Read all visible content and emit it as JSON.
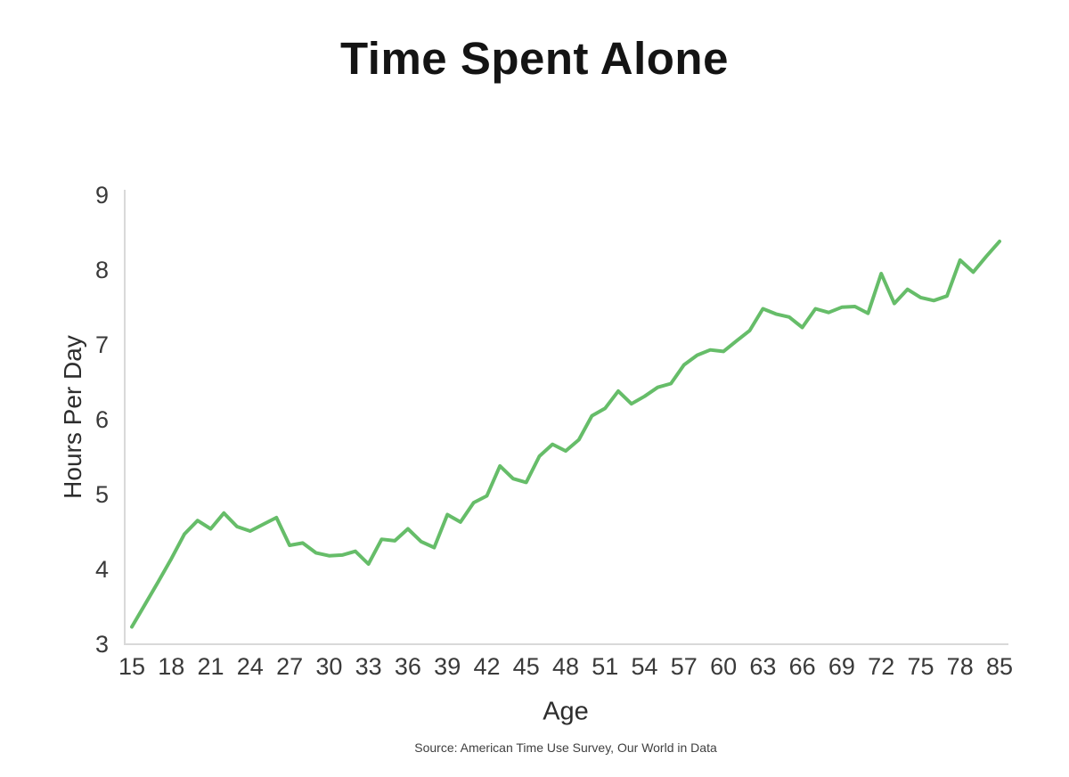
{
  "title": "Time Spent Alone",
  "y_axis": {
    "label": "Hours Per Day",
    "ticks": [
      9,
      8,
      7,
      6,
      5,
      4,
      3
    ]
  },
  "x_axis": {
    "label": "Age",
    "tick_labels": [
      "15",
      "18",
      "21",
      "24",
      "27",
      "30",
      "33",
      "36",
      "39",
      "42",
      "45",
      "48",
      "51",
      "54",
      "57",
      "60",
      "63",
      "66",
      "69",
      "72",
      "75",
      "78",
      "85"
    ],
    "tick_indices": [
      0,
      3,
      6,
      9,
      12,
      15,
      18,
      21,
      24,
      27,
      30,
      33,
      36,
      39,
      42,
      45,
      48,
      51,
      54,
      57,
      60,
      63,
      66
    ]
  },
  "source": "Source: American Time Use Survey, Our World in Data",
  "colors": {
    "line": "#66bd69",
    "axis": "#d9d9d9",
    "tick_text": "#3a3a3a",
    "title_text": "#141414"
  },
  "chart_data": {
    "type": "line",
    "title": "Time Spent Alone",
    "xlabel": "Age",
    "ylabel": "Hours Per Day",
    "x": [
      15,
      16,
      17,
      18,
      19,
      20,
      21,
      22,
      23,
      24,
      25,
      26,
      27,
      28,
      29,
      30,
      31,
      32,
      33,
      34,
      35,
      36,
      37,
      38,
      39,
      40,
      41,
      42,
      43,
      44,
      45,
      46,
      47,
      48,
      49,
      50,
      51,
      52,
      53,
      54,
      55,
      56,
      57,
      58,
      59,
      60,
      61,
      62,
      63,
      64,
      65,
      66,
      67,
      68,
      69,
      70,
      71,
      72,
      73,
      74,
      75,
      76,
      77,
      78,
      79,
      80,
      85
    ],
    "y": [
      3.22,
      3.52,
      3.82,
      4.13,
      4.46,
      4.64,
      4.53,
      4.74,
      4.56,
      4.5,
      4.59,
      4.68,
      4.31,
      4.34,
      4.21,
      4.17,
      4.18,
      4.23,
      4.06,
      4.39,
      4.37,
      4.53,
      4.36,
      4.28,
      4.72,
      4.62,
      4.88,
      4.97,
      5.37,
      5.2,
      5.15,
      5.5,
      5.66,
      5.57,
      5.72,
      6.04,
      6.14,
      6.37,
      6.2,
      6.3,
      6.42,
      6.47,
      6.72,
      6.85,
      6.92,
      6.9,
      7.04,
      7.18,
      7.47,
      7.4,
      7.36,
      7.22,
      7.47,
      7.42,
      7.49,
      7.5,
      7.41,
      7.94,
      7.54,
      7.73,
      7.62,
      7.58,
      7.64,
      8.12,
      7.96,
      8.17,
      8.37
    ],
    "ylim": [
      3,
      9
    ],
    "grid": false,
    "legend": "none"
  }
}
